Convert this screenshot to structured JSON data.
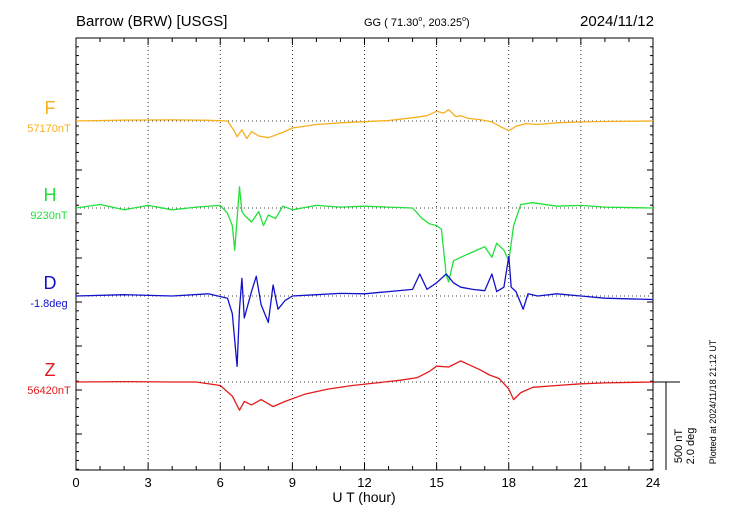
{
  "header": {
    "station": "Barrow (BRW)  [USGS]",
    "coords_prefix": "GG ( 71.30",
    "coords_mid": ", 203.25",
    "coords_suffix": ")",
    "date": "2024/11/12"
  },
  "side_note": "Plotted at 2024/11/18 21:12 UT",
  "scale_bar": {
    "line1": "500 nT",
    "line2": "2.0 deg"
  },
  "chart_data": {
    "type": "line",
    "xlabel": "U T (hour)",
    "xlim": [
      0,
      24
    ],
    "xticks": [
      "0",
      "3",
      "6",
      "9",
      "12",
      "15",
      "18",
      "21",
      "24"
    ],
    "grid": true,
    "scale_nT_per_bar": 500,
    "scale_deg_per_bar": 2.0,
    "series": [
      {
        "name": "F",
        "baseline_label": "57170nT",
        "color": "#f5b01e",
        "x": [
          0,
          2,
          4,
          5.5,
          6.3,
          6.6,
          6.7,
          6.9,
          7.1,
          7.3,
          7.6,
          8.0,
          8.3,
          8.6,
          9.0,
          10.0,
          11.0,
          12.0,
          13.0,
          14.0,
          14.6,
          15.0,
          15.3,
          15.5,
          15.8,
          16.0,
          16.3,
          16.8,
          17.3,
          17.7,
          18.0,
          18.3,
          18.7,
          19.2,
          20,
          21,
          22,
          24
        ],
        "y": [
          0,
          5,
          6,
          4,
          0,
          -60,
          -90,
          -50,
          -100,
          -60,
          -85,
          -95,
          -80,
          -65,
          -40,
          -20,
          -10,
          -4,
          3,
          18,
          30,
          55,
          45,
          65,
          25,
          30,
          15,
          8,
          -5,
          -35,
          -55,
          -30,
          -15,
          -20,
          -10,
          -5,
          -3,
          0
        ]
      },
      {
        "name": "H",
        "baseline_label": "9230nT",
        "color": "#22e03a",
        "x": [
          0,
          1,
          2,
          3,
          4,
          5,
          6,
          6.3,
          6.5,
          6.6,
          6.7,
          6.8,
          6.9,
          7.0,
          7.3,
          7.6,
          7.8,
          8.0,
          8.3,
          8.6,
          9.0,
          10,
          11,
          12,
          13,
          14,
          14.4,
          14.7,
          15.0,
          15.2,
          15.4,
          15.5,
          15.7,
          16.0,
          16.5,
          17.0,
          17.3,
          17.5,
          17.8,
          18.0,
          18.2,
          18.5,
          19.0,
          20,
          21,
          22,
          24
        ],
        "y": [
          0,
          20,
          -10,
          15,
          -10,
          5,
          15,
          -30,
          -100,
          -240,
          -60,
          120,
          -20,
          -40,
          -80,
          -20,
          -100,
          -40,
          -60,
          10,
          -10,
          15,
          5,
          10,
          5,
          0,
          -60,
          -90,
          -100,
          -120,
          -380,
          -420,
          -300,
          -280,
          -250,
          -220,
          -280,
          -200,
          -240,
          -300,
          -100,
          20,
          30,
          10,
          15,
          5,
          0
        ]
      },
      {
        "name": "D",
        "baseline_label": "-1.8deg",
        "color": "#1111cc",
        "x": [
          0,
          2,
          4,
          5.5,
          6.3,
          6.5,
          6.7,
          6.8,
          6.9,
          7.0,
          7.3,
          7.5,
          7.7,
          8.0,
          8.2,
          8.4,
          8.7,
          9.0,
          10,
          11,
          12,
          13,
          14,
          14.3,
          14.6,
          15.0,
          15.4,
          15.7,
          16.0,
          16.5,
          17.0,
          17.3,
          17.5,
          17.8,
          18.0,
          18.1,
          18.3,
          18.6,
          18.8,
          19.2,
          20,
          21,
          22,
          24
        ],
        "y": [
          0,
          0.03,
          0,
          0.05,
          -0.05,
          -0.4,
          -1.6,
          -0.3,
          0.4,
          -0.5,
          0.1,
          0.45,
          -0.2,
          -0.6,
          0.25,
          -0.3,
          -0.1,
          0,
          0.03,
          0.06,
          0.05,
          0.1,
          0.15,
          0.5,
          0.15,
          0.3,
          0.5,
          0.3,
          0.2,
          0.15,
          0.12,
          0.5,
          0.1,
          0.2,
          0.9,
          0.2,
          0.1,
          -0.3,
          0.05,
          0,
          0.05,
          0,
          -0.05,
          -0.08
        ]
      },
      {
        "name": "Z",
        "baseline_label": "56420nT",
        "color": "#e41b1b",
        "x": [
          0,
          2,
          4,
          5,
          6,
          6.5,
          6.8,
          7.0,
          7.3,
          7.7,
          8.2,
          8.7,
          9.5,
          10.5,
          11.5,
          12.5,
          13.5,
          14.2,
          14.7,
          15.0,
          15.5,
          16.0,
          16.4,
          16.8,
          17.2,
          17.6,
          18.0,
          18.2,
          18.5,
          19.0,
          20,
          21,
          22,
          24
        ],
        "y": [
          0,
          2,
          0,
          0,
          -20,
          -80,
          -160,
          -110,
          -130,
          -100,
          -140,
          -110,
          -70,
          -40,
          -20,
          -5,
          10,
          25,
          60,
          90,
          85,
          120,
          95,
          70,
          40,
          20,
          -40,
          -100,
          -60,
          -30,
          -20,
          -10,
          -5,
          0
        ]
      }
    ]
  }
}
